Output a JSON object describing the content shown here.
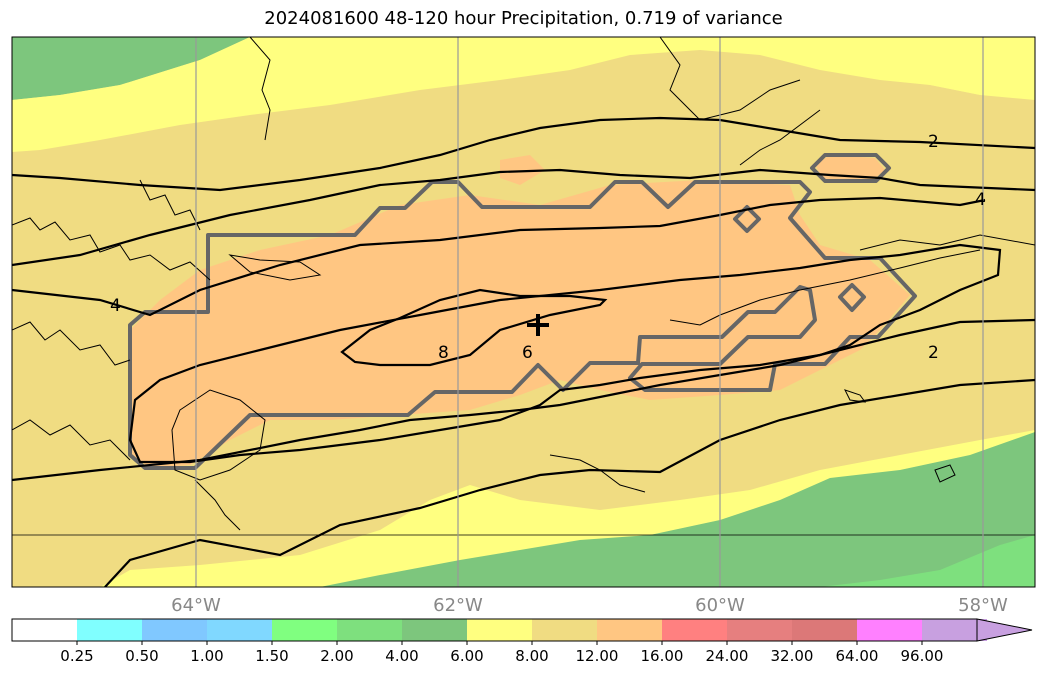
{
  "title": "2024081600 48-120 hour Precipitation, 0.719 of variance",
  "map": {
    "lon_ticks": [
      "64°W",
      "62°W",
      "60°W",
      "58°W"
    ],
    "contour_labels": [
      "2",
      "4",
      "4",
      "6",
      "8",
      "2"
    ],
    "center_marker": "plus-icon",
    "colors": {
      "green_dark": "#7dc67d",
      "green_light": "#7ee07e",
      "yellow": "#ffff80",
      "tan": "#f0dc82",
      "peach": "#ffc682",
      "outline": "#666666"
    }
  },
  "colorbar": {
    "labels": [
      "0.25",
      "0.50",
      "1.00",
      "1.50",
      "2.00",
      "4.00",
      "6.00",
      "8.00",
      "12.00",
      "16.00",
      "24.00",
      "32.00",
      "64.00",
      "96.00"
    ],
    "colors": [
      "#ffffff",
      "#80ffff",
      "#80c8ff",
      "#80d8ff",
      "#80ff80",
      "#7ee07e",
      "#7dc67d",
      "#ffff80",
      "#f0dc82",
      "#ffc682",
      "#ff8080",
      "#e67f7f",
      "#dc7878",
      "#ff80ff",
      "#c8a0e0"
    ]
  }
}
